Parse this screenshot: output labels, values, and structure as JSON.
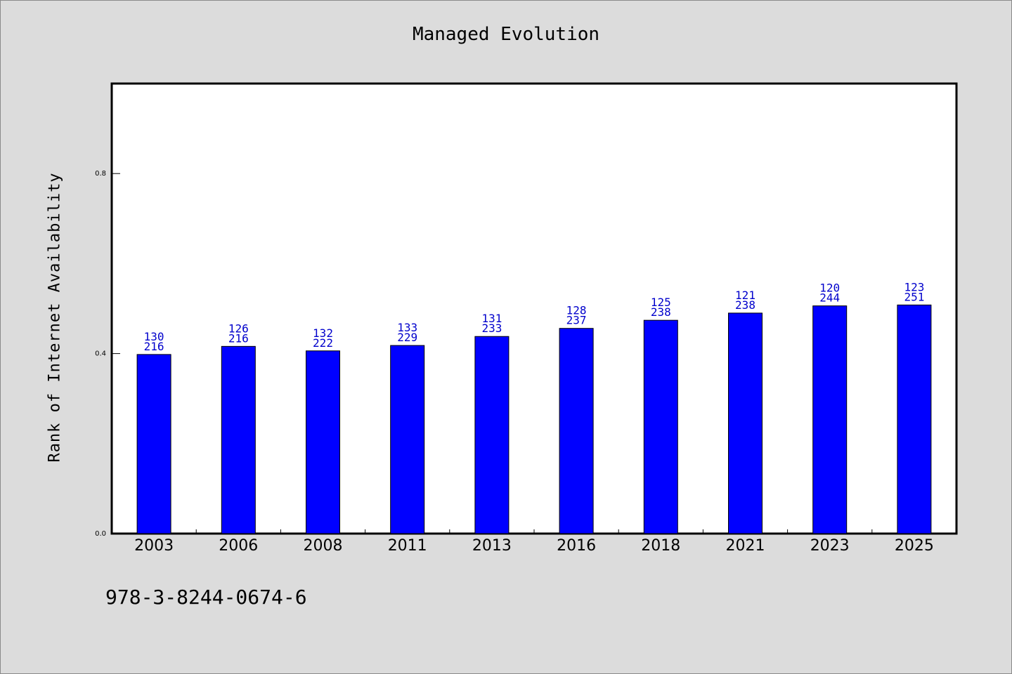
{
  "chart_data": {
    "type": "bar",
    "title": "Managed Evolution",
    "xlabel": "",
    "ylabel": "Rank of Internet Availability",
    "categories": [
      "2003",
      "2006",
      "2008",
      "2011",
      "2013",
      "2016",
      "2018",
      "2021",
      "2023",
      "2025"
    ],
    "values": [
      0.398,
      0.416,
      0.406,
      0.418,
      0.438,
      0.456,
      0.474,
      0.49,
      0.506,
      0.508
    ],
    "label_top": [
      "130",
      "126",
      "132",
      "133",
      "131",
      "128",
      "125",
      "121",
      "120",
      "123"
    ],
    "label_bottom": [
      "216",
      "216",
      "222",
      "229",
      "233",
      "237",
      "238",
      "238",
      "244",
      "251"
    ],
    "yticks": [
      0.0,
      0.4,
      0.8
    ],
    "ytick_labels": [
      "0.0",
      "0.4",
      "0.8"
    ],
    "ylim": [
      0,
      1.0
    ],
    "grid": false,
    "bar_color": "#0000ff",
    "label_color": "#0000cc",
    "plot_background": "#ffffff",
    "page_background": "#dcdcdc"
  },
  "footer": {
    "code": "978-3-8244-0674-6"
  }
}
